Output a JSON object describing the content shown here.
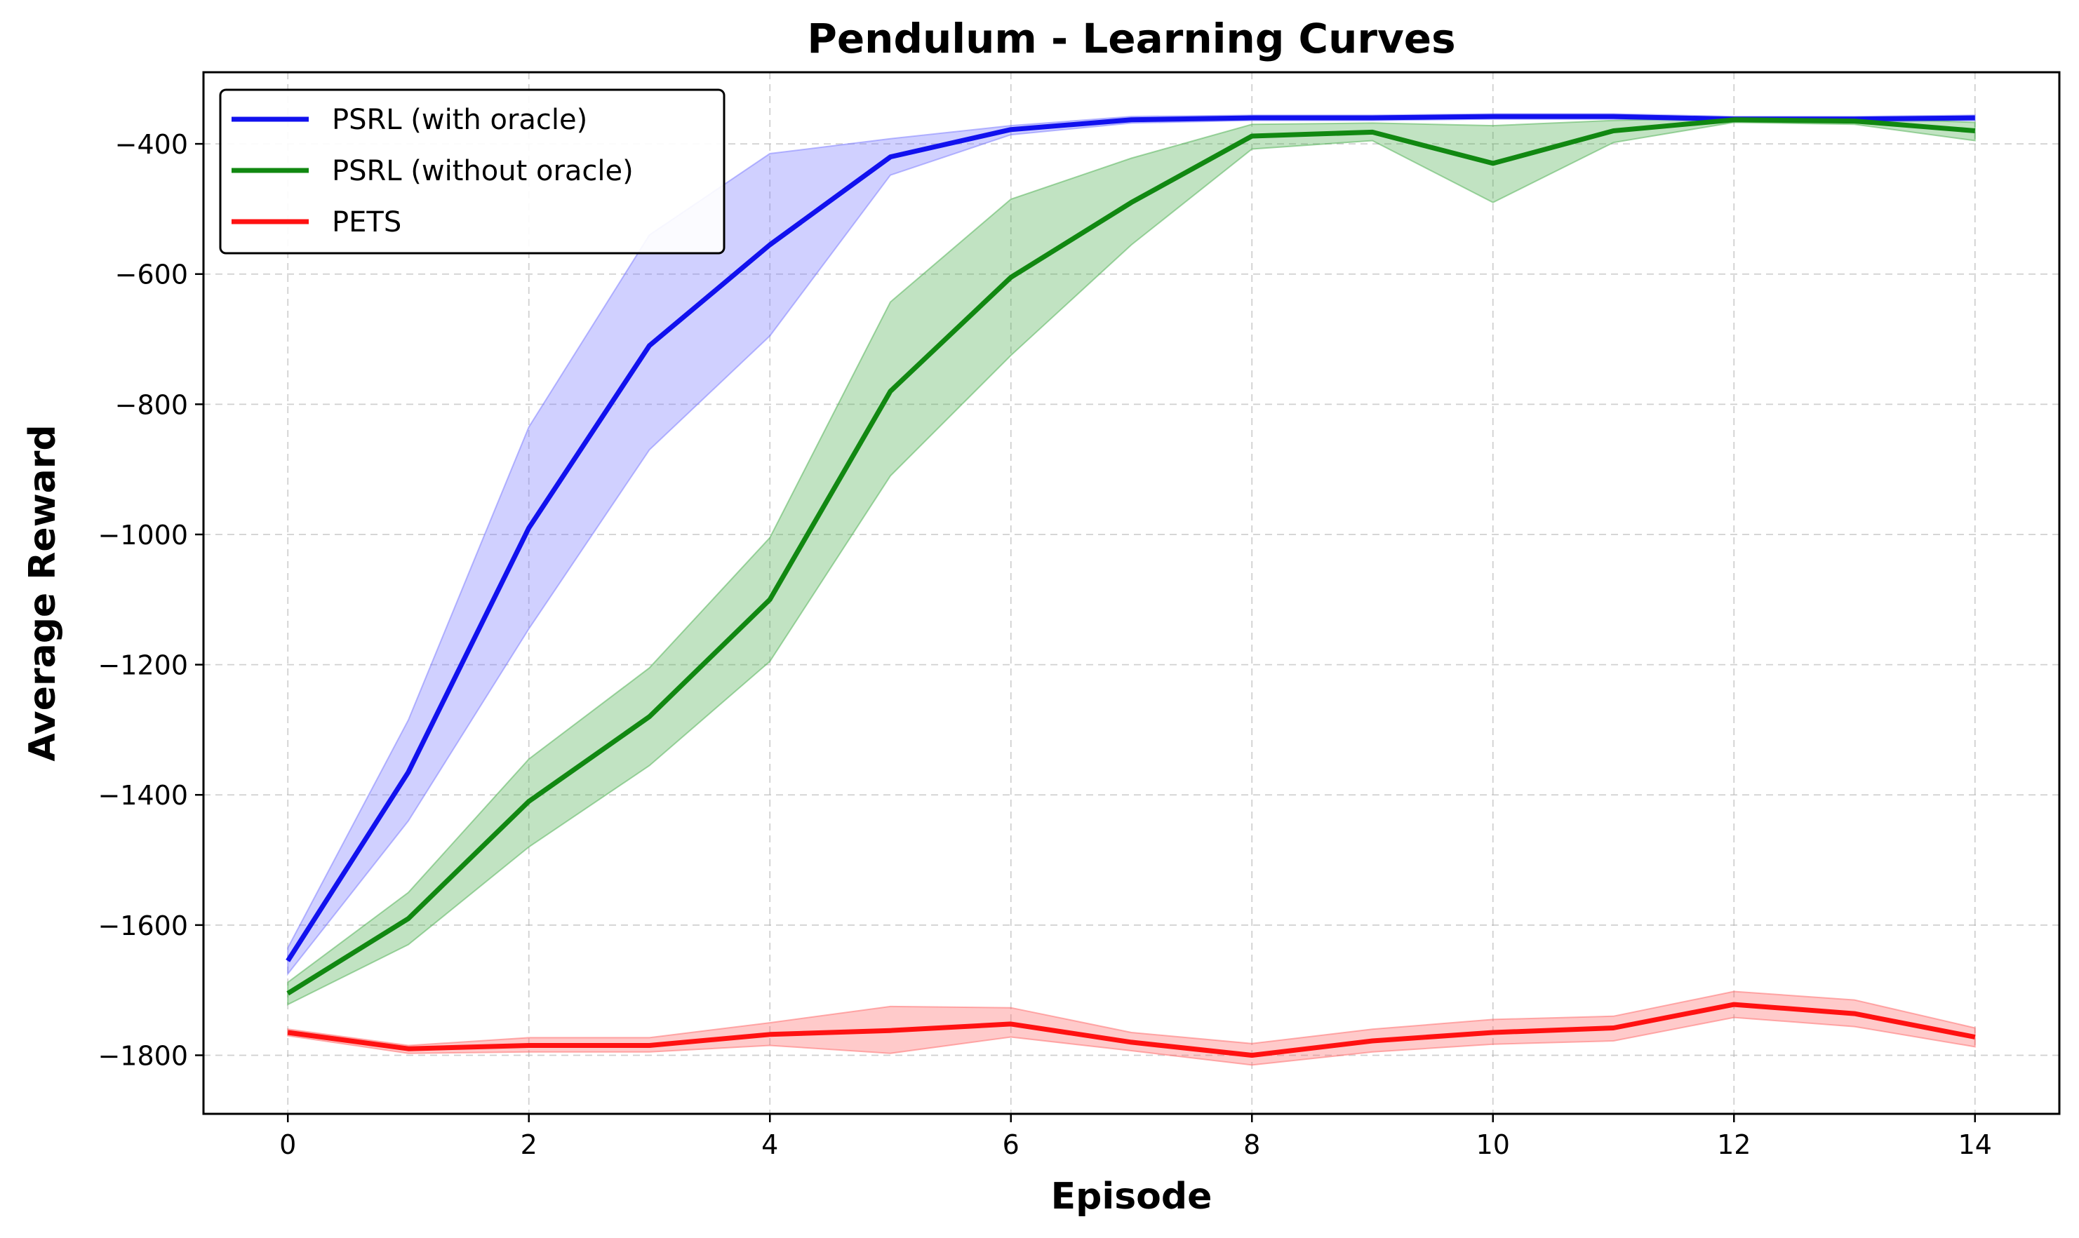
{
  "chart_data": {
    "type": "line",
    "title": "Pendulum - Learning Curves",
    "xlabel": "Episode",
    "ylabel": "Average Reward",
    "xlim": [
      -0.7,
      14.7
    ],
    "ylim": [
      -1890,
      -290
    ],
    "x_ticks": [
      0,
      2,
      4,
      6,
      8,
      10,
      12,
      14
    ],
    "y_ticks": [
      -1800,
      -1600,
      -1400,
      -1200,
      -1000,
      -800,
      -600,
      -400
    ],
    "x_tick_labels": [
      "0",
      "2",
      "4",
      "6",
      "8",
      "10",
      "12",
      "14"
    ],
    "y_tick_labels": [
      "−1800",
      "−1600",
      "−1400",
      "−1200",
      "−1000",
      "−800",
      "−600",
      "−400"
    ],
    "grid": true,
    "legend_position": "top-left",
    "x": [
      0,
      1,
      2,
      3,
      4,
      5,
      6,
      7,
      8,
      9,
      10,
      11,
      12,
      13,
      14
    ],
    "series": [
      {
        "name": "PSRL (with oracle)",
        "color": "#1111ee",
        "fill_color": "#7777ff",
        "values": [
          -1655,
          -1365,
          -990,
          -710,
          -555,
          -420,
          -378,
          -363,
          -360,
          -360,
          -358,
          -358,
          -362,
          -362,
          -360
        ],
        "lower": [
          -1675,
          -1440,
          -1145,
          -870,
          -695,
          -448,
          -386,
          -368,
          -364,
          -364,
          -362,
          -362,
          -366,
          -366,
          -364
        ],
        "upper": [
          -1635,
          -1285,
          -835,
          -540,
          -415,
          -392,
          -372,
          -358,
          -356,
          -356,
          -354,
          -354,
          -358,
          -358,
          -356
        ]
      },
      {
        "name": "PSRL (without oracle)",
        "color": "#118811",
        "fill_color": "#4caf50",
        "values": [
          -1705,
          -1590,
          -1410,
          -1280,
          -1100,
          -780,
          -605,
          -490,
          -388,
          -382,
          -430,
          -380,
          -363,
          -365,
          -380
        ],
        "lower": [
          -1722,
          -1630,
          -1480,
          -1355,
          -1195,
          -910,
          -725,
          -555,
          -408,
          -395,
          -490,
          -398,
          -367,
          -370,
          -395
        ],
        "upper": [
          -1688,
          -1550,
          -1345,
          -1205,
          -1005,
          -643,
          -485,
          -422,
          -370,
          -368,
          -372,
          -364,
          -359,
          -360,
          -367
        ]
      },
      {
        "name": "PETS",
        "color": "#ff1111",
        "fill_color": "#ff6666",
        "values": [
          -1765,
          -1790,
          -1785,
          -1785,
          -1768,
          -1762,
          -1752,
          -1780,
          -1800,
          -1778,
          -1765,
          -1758,
          -1722,
          -1736,
          -1772
        ],
        "lower": [
          -1770,
          -1797,
          -1795,
          -1795,
          -1785,
          -1797,
          -1772,
          -1793,
          -1815,
          -1795,
          -1783,
          -1778,
          -1742,
          -1756,
          -1787
        ],
        "upper": [
          -1760,
          -1785,
          -1773,
          -1773,
          -1750,
          -1725,
          -1727,
          -1765,
          -1782,
          -1760,
          -1745,
          -1740,
          -1702,
          -1715,
          -1758
        ]
      }
    ]
  }
}
